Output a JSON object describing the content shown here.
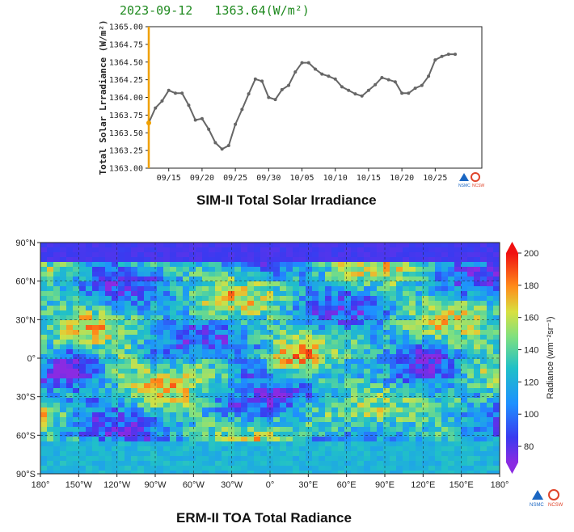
{
  "top_panel": {
    "date": "2023-09-12",
    "value": "1363.64",
    "unit_html": "(W/m²)",
    "caption": "SIM-II Total Solar Irradiance"
  },
  "bottom_panel": {
    "caption": "ERM-II TOA Total Radiance"
  },
  "logos": {
    "nsmc": "NSMC",
    "ncsw": "NCSW"
  },
  "colors": {
    "line": "#666666",
    "marker_current": "#f0a000",
    "header_text": "#1f8a1f"
  },
  "chart_data": [
    {
      "type": "line",
      "title": "2023-09-12  1363.64 (W/m²)",
      "ylabel": "Total Solar Lrradiance (W/m²)",
      "xlabel": "",
      "ylim": [
        1363.0,
        1365.0
      ],
      "xlim_days": [
        0,
        50
      ],
      "y_ticks": [
        "1363.00",
        "1363.25",
        "1363.50",
        "1363.75",
        "1364.00",
        "1364.25",
        "1364.50",
        "1364.75",
        "1365.00"
      ],
      "x_ticks": [
        {
          "day": 3,
          "label": "09/15"
        },
        {
          "day": 8,
          "label": "09/20"
        },
        {
          "day": 13,
          "label": "09/25"
        },
        {
          "day": 18,
          "label": "09/30"
        },
        {
          "day": 23,
          "label": "10/05"
        },
        {
          "day": 28,
          "label": "10/10"
        },
        {
          "day": 33,
          "label": "10/15"
        },
        {
          "day": 38,
          "label": "10/20"
        },
        {
          "day": 43,
          "label": "10/25"
        }
      ],
      "grid": true,
      "current_day": 0,
      "current_value": 1363.64,
      "series": [
        {
          "name": "TSI",
          "x": [
            0,
            1,
            2,
            3,
            4,
            5,
            6,
            7,
            8,
            9,
            10,
            11,
            12,
            13,
            14,
            15,
            16,
            17,
            18,
            19,
            20,
            21,
            22,
            23,
            24,
            25,
            26,
            27,
            28,
            29,
            30,
            31,
            32,
            33,
            34,
            35,
            36,
            37,
            38,
            39,
            40,
            41,
            42,
            43,
            44,
            45,
            46
          ],
          "values": [
            1363.64,
            1363.85,
            1363.95,
            1364.1,
            1364.06,
            1364.06,
            1363.89,
            1363.68,
            1363.7,
            1363.55,
            1363.36,
            1363.27,
            1363.32,
            1363.62,
            1363.83,
            1364.05,
            1364.26,
            1364.23,
            1364.0,
            1363.97,
            1364.11,
            1364.17,
            1364.36,
            1364.49,
            1364.49,
            1364.4,
            1364.33,
            1364.3,
            1364.26,
            1364.15,
            1364.1,
            1364.05,
            1364.02,
            1364.1,
            1364.18,
            1364.28,
            1364.25,
            1364.22,
            1364.06,
            1364.06,
            1364.13,
            1364.17,
            1364.3,
            1364.53,
            1364.58,
            1364.61,
            1364.61
          ]
        }
      ]
    },
    {
      "type": "heatmap",
      "title": "",
      "colorbar_label": "Radiance (wm⁻²sr⁻¹)",
      "colorbar_ticks": [
        80,
        100,
        120,
        140,
        160,
        180,
        200
      ],
      "colorbar_range": [
        70,
        200
      ],
      "x_ticks": [
        "180°",
        "150°W",
        "120°W",
        "90°W",
        "60°W",
        "30°W",
        "0°",
        "30°E",
        "60°E",
        "90°E",
        "120°E",
        "150°E",
        "180°"
      ],
      "y_ticks": [
        "90°N",
        "60°N",
        "30°N",
        "0°",
        "30°S",
        "60°S",
        "90°S"
      ]
    }
  ]
}
